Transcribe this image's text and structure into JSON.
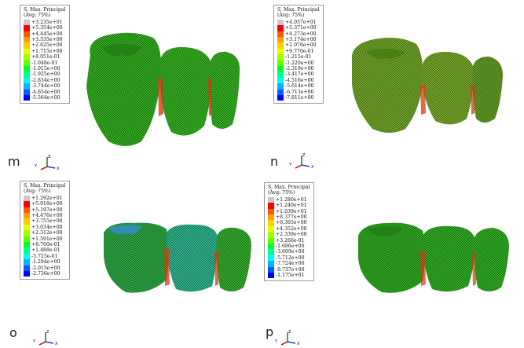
{
  "panels": [
    {
      "label": "m",
      "legend": {
        "title": "S, Max. Principal",
        "subtitle": "(Avg: 75%)",
        "values": [
          "+3.235e+01",
          "+5.354e+00",
          "+4.445e+00",
          "+3.535e+00",
          "+2.625e+00",
          "+1.715e+00",
          "+8.051e-01",
          "-1.048e-01",
          "-1.015e+00",
          "-1.925e+00",
          "-2.834e+00",
          "-3.744e+00",
          "-4.654e+00",
          "-5.564e+00"
        ]
      },
      "triad": {
        "y": "Y",
        "z": "Z",
        "x": "X"
      }
    },
    {
      "label": "n",
      "legend": {
        "title": "S, Max. Principal",
        "subtitle": "(Avg: 75%)",
        "values": [
          "+4.037e+01",
          "+5.371e+00",
          "+4.273e+00",
          "+3.174e+00",
          "+2.076e+00",
          "+9.770e-01",
          "-1.215e-01",
          "-1.220e+00",
          "-2.319e+00",
          "-3.417e+00",
          "-4.516e+00",
          "-5.614e+00",
          "-6.713e+00",
          "-7.811e+00"
        ]
      },
      "triad": {
        "y": "Y",
        "z": "Z",
        "x": "X"
      }
    },
    {
      "label": "o",
      "legend": {
        "title": "S, Max. Principal",
        "subtitle": "(Avg: 75%)",
        "values": [
          "+1.292e+01",
          "+5.918e+00",
          "+5.197e+00",
          "+4.476e+00",
          "+3.755e+00",
          "+3.034e+00",
          "+2.312e+00",
          "+1.591e+00",
          "+8.700e-01",
          "+1.488e-01",
          "-5.725e-01",
          "-1.294e+00",
          "-2.015e+00",
          "-2.736e+00"
        ]
      },
      "triad": {
        "y": "Y",
        "z": "Z",
        "x": "X"
      }
    },
    {
      "label": "p",
      "legend": {
        "title": "S, Max. Principal",
        "subtitle": "(Avg: 75%)",
        "values": [
          "+1.280e+01",
          "+1.240e+01",
          "+1.039e+01",
          "+8.377e+00",
          "+6.365e+00",
          "+4.352e+00",
          "+2.339e+00",
          "+3.266e-01",
          "-1.686e+00",
          "-3.699e+00",
          "-5.712e+00",
          "-7.724e+00",
          "-9.737e+00",
          "-1.175e+01"
        ]
      },
      "triad": {
        "y": "Y",
        "z": "Z",
        "x": "X"
      }
    }
  ],
  "colors": {
    "scale": [
      "#c8c8c8",
      "#ff0000",
      "#ff5a00",
      "#ffa000",
      "#ffd000",
      "#e6ff00",
      "#a0ff00",
      "#5aff00",
      "#00ff28",
      "#00ff96",
      "#00ffe6",
      "#00b4ff",
      "#005aff",
      "#0000ff"
    ],
    "tooth_green": "#2fae1c",
    "tooth_olive": "#7ea326",
    "tooth_cyan_tint": "#2fb6a0",
    "stress_red": "#d23a12"
  }
}
